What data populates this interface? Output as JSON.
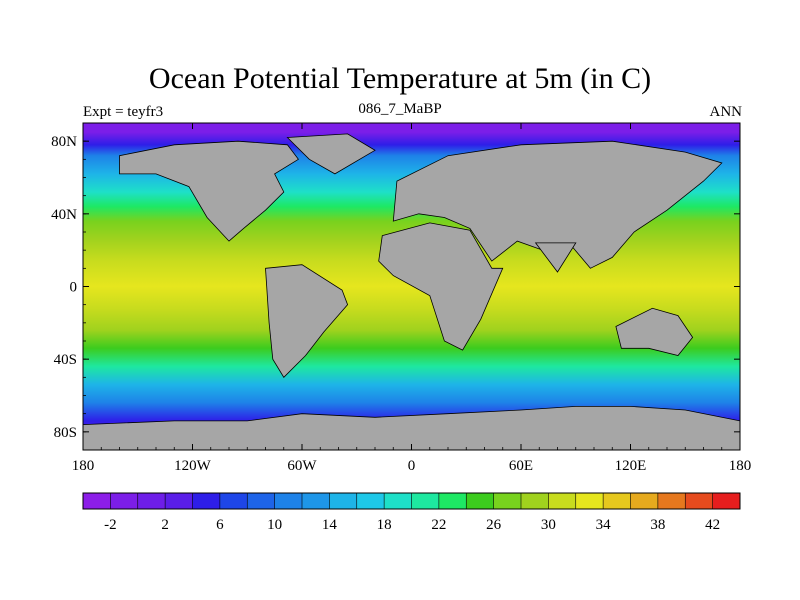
{
  "title": "Ocean Potential Temperature at 5m (in C)",
  "subtitle_left": "Expt = teyfr3",
  "subtitle_center": "086_7_MaBP",
  "subtitle_right": "ANN",
  "map": {
    "lon_range": [
      -180,
      180
    ],
    "lat_range": [
      -90,
      90
    ],
    "lon_ticks": [
      "180",
      "120W",
      "60W",
      "0",
      "60E",
      "120E",
      "180"
    ],
    "lat_ticks": [
      "80N",
      "40N",
      "0",
      "40S",
      "80S"
    ],
    "land_color": "#a6a6a6",
    "ocean_bands": [
      {
        "lat": 85,
        "temp": -2
      },
      {
        "lat": 78,
        "temp": 4
      },
      {
        "lat": 72,
        "temp": 10
      },
      {
        "lat": 62,
        "temp": 14
      },
      {
        "lat": 52,
        "temp": 18
      },
      {
        "lat": 44,
        "temp": 22
      },
      {
        "lat": 36,
        "temp": 26
      },
      {
        "lat": 26,
        "temp": 29
      },
      {
        "lat": 14,
        "temp": 31
      },
      {
        "lat": 0,
        "temp": 32
      },
      {
        "lat": -12,
        "temp": 30
      },
      {
        "lat": -24,
        "temp": 28
      },
      {
        "lat": -34,
        "temp": 25
      },
      {
        "lat": -44,
        "temp": 20
      },
      {
        "lat": -54,
        "temp": 15
      },
      {
        "lat": -64,
        "temp": 10
      },
      {
        "lat": -74,
        "temp": 5
      },
      {
        "lat": -82,
        "temp": 2
      }
    ]
  },
  "colorbar": {
    "levels": [
      -4,
      -2,
      0,
      2,
      4,
      6,
      8,
      10,
      12,
      14,
      16,
      18,
      20,
      22,
      24,
      26,
      28,
      30,
      32,
      34,
      36,
      38,
      40,
      42,
      44
    ],
    "labels": [
      "-2",
      "2",
      "6",
      "10",
      "14",
      "18",
      "22",
      "26",
      "30",
      "34",
      "38",
      "42"
    ],
    "colors": [
      "#8c1ee8",
      "#7c1ee8",
      "#6e1ee8",
      "#5a1ee8",
      "#2e1ee8",
      "#1e46e8",
      "#1e64e8",
      "#1e82e8",
      "#1e96e8",
      "#1eb4e8",
      "#1ec8e8",
      "#1ee0c8",
      "#1ee8a0",
      "#1ee864",
      "#3ccc1e",
      "#78d21e",
      "#a0d21e",
      "#c8dc1e",
      "#e6e61e",
      "#e6c81e",
      "#e6aa1e",
      "#e6781e",
      "#e64b1e",
      "#e61e1e"
    ]
  }
}
